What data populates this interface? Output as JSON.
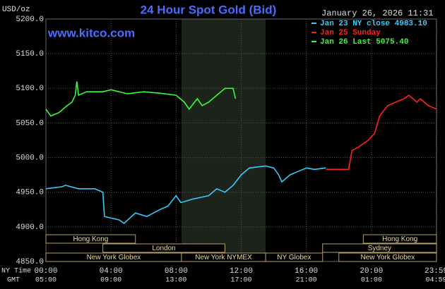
{
  "chart_data": {
    "type": "line",
    "title": "24 Hour Spot Gold (Bid)",
    "timestamp": "January 26, 2026 11:31",
    "y_label": "USD/oz",
    "watermark": "www.kitco.com",
    "x_label": "NY Time",
    "x2_label": "GMT",
    "xlim": [
      0,
      24
    ],
    "ylim": [
      4850,
      5200
    ],
    "xticks": [
      {
        "value": 0,
        "label": "00:00"
      },
      {
        "value": 4,
        "label": "04:00"
      },
      {
        "value": 8,
        "label": "08:00"
      },
      {
        "value": 12,
        "label": "12:00"
      },
      {
        "value": 16,
        "label": "16:00"
      },
      {
        "value": 20,
        "label": "20:00"
      },
      {
        "value": 23.98,
        "label": "23:59"
      }
    ],
    "x2tick_labels": [
      "05:00",
      "09:00",
      "13:00",
      "17:00",
      "21:00",
      "01:00",
      "04:59"
    ],
    "yticks": [
      {
        "value": 4850,
        "label": "4850.0"
      },
      {
        "value": 4900,
        "label": "4900.0"
      },
      {
        "value": 4950,
        "label": "4950.0"
      },
      {
        "value": 5000,
        "label": "5000.0"
      },
      {
        "value": 5050,
        "label": "5050.0"
      },
      {
        "value": 5100,
        "label": "5100.0"
      },
      {
        "value": 5150,
        "label": "5150.0"
      },
      {
        "value": 5200,
        "label": "5200.0"
      }
    ],
    "grid": true,
    "series": [
      {
        "name": "Jan 23 NY close 4983.10",
        "color": "#33ccff",
        "x": [
          0,
          1,
          1.2,
          2,
          3,
          3.5,
          3.6,
          4.5,
          4.8,
          5.5,
          6.2,
          7,
          7.5,
          8,
          8.3,
          9,
          10,
          10.5,
          11,
          11.5,
          12,
          12.5,
          13.5,
          14,
          14.3,
          14.5,
          15,
          15.5,
          16,
          16.5,
          17.2
        ],
        "values": [
          4955,
          4958,
          4960,
          4955,
          4955,
          4950,
          4915,
          4910,
          4905,
          4920,
          4915,
          4925,
          4930,
          4945,
          4935,
          4940,
          4945,
          4955,
          4950,
          4960,
          4975,
          4985,
          4988,
          4985,
          4975,
          4965,
          4975,
          4980,
          4985,
          4983,
          4985
        ]
      },
      {
        "name": "Jan 25 Sunday",
        "color": "#ff2020",
        "x": [
          17.2,
          18.6,
          18.8,
          19.2,
          19.8,
          20.2,
          20.5,
          21,
          21.5,
          22,
          22.3,
          22.8,
          23,
          23.5,
          24
        ],
        "values": [
          4983,
          4983,
          5010,
          5015,
          5025,
          5035,
          5060,
          5075,
          5080,
          5085,
          5090,
          5080,
          5085,
          5075,
          5070
        ]
      },
      {
        "name": "Jan 26 Last 5075.40",
        "color": "#33ff33",
        "x": [
          0,
          0.3,
          0.8,
          1.3,
          1.6,
          1.8,
          1.9,
          2,
          2.5,
          3.5,
          4,
          5,
          6,
          7,
          8,
          8.5,
          8.8,
          9.3,
          9.6,
          10,
          10.5,
          11,
          11.5,
          11.65
        ],
        "values": [
          5070,
          5060,
          5065,
          5075,
          5080,
          5090,
          5110,
          5090,
          5095,
          5095,
          5098,
          5092,
          5095,
          5093,
          5090,
          5080,
          5070,
          5085,
          5075,
          5080,
          5090,
          5100,
          5100,
          5085
        ]
      }
    ],
    "session_rows": [
      [
        {
          "name": "Hong Kong",
          "start": 0,
          "end": 5.5
        },
        {
          "name": "Hong Kong",
          "start": 19.5,
          "end": 24
        }
      ],
      [
        {
          "name": "London",
          "start": 3.5,
          "end": 11
        },
        {
          "name": "Sydney",
          "start": 17,
          "end": 24
        }
      ],
      [
        {
          "name": "New York Globex",
          "start": 0,
          "end": 8.33
        },
        {
          "name": "New York NYMEX",
          "start": 8.33,
          "end": 13.5,
          "shade": true
        },
        {
          "name": "NY Globex",
          "start": 13.5,
          "end": 17
        },
        {
          "name": "New York Globex",
          "start": 18,
          "end": 24
        }
      ]
    ]
  }
}
